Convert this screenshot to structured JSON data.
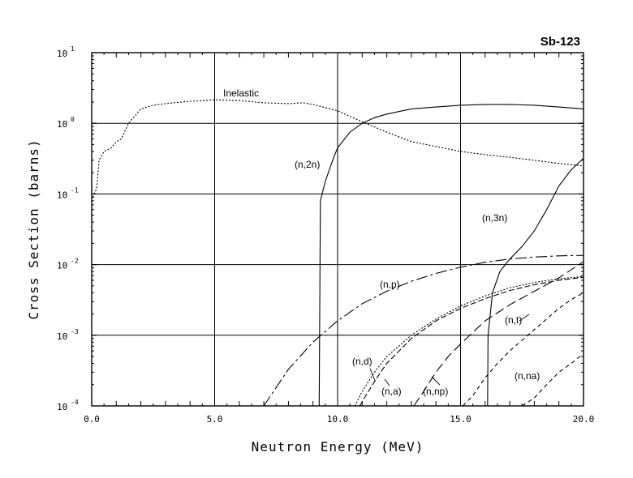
{
  "chart_data": {
    "type": "line",
    "title": "Sb-123",
    "xlabel": "Neutron Energy (MeV)",
    "ylabel": "Cross Section (barns)",
    "xlim": [
      0,
      20
    ],
    "ylim": [
      0.0001,
      10
    ],
    "yscale": "log",
    "grid": true,
    "x_ticks": [
      0,
      5,
      10,
      15,
      20
    ],
    "x_tick_labels": [
      "0.0",
      "5.0",
      "10.0",
      "15.0",
      "20.0"
    ],
    "y_ticks": [
      0.0001,
      0.001,
      0.01,
      0.1,
      1,
      10
    ],
    "y_tick_labels": [
      {
        "base": "10",
        "exp": "-4"
      },
      {
        "base": "10",
        "exp": "-3"
      },
      {
        "base": "10",
        "exp": "-2"
      },
      {
        "base": "10",
        "exp": "-1"
      },
      {
        "base": "10",
        "exp": "0"
      },
      {
        "base": "10",
        "exp": "1"
      }
    ],
    "series": [
      {
        "name": "Inelastic",
        "dash": "2,2",
        "x": [
          0.05,
          0.2,
          0.3,
          0.5,
          0.8,
          1.0,
          1.2,
          1.5,
          2.0,
          2.5,
          3.0,
          4.0,
          5.0,
          6.0,
          7.0,
          8.0,
          8.6,
          9.0,
          10.0,
          11.0,
          12.0,
          13.0,
          14.0,
          15.0,
          16.0,
          17.0,
          18.0,
          19.0,
          20.0
        ],
        "y": [
          0.09,
          0.12,
          0.3,
          0.4,
          0.45,
          0.55,
          0.6,
          1.0,
          1.6,
          1.8,
          1.9,
          2.05,
          2.15,
          2.1,
          1.95,
          1.9,
          1.95,
          1.85,
          1.5,
          1.05,
          0.75,
          0.55,
          0.47,
          0.4,
          0.36,
          0.33,
          0.3,
          0.27,
          0.25
        ]
      },
      {
        "name": "(n,2n)",
        "dash": "",
        "x": [
          9.25,
          9.3,
          9.5,
          9.8,
          10.0,
          10.5,
          11.0,
          11.5,
          12.0,
          13.0,
          14.0,
          15.0,
          16.0,
          17.0,
          18.0,
          19.0,
          20.0
        ],
        "y": [
          0.0001,
          0.08,
          0.15,
          0.3,
          0.45,
          0.75,
          1.0,
          1.2,
          1.35,
          1.6,
          1.7,
          1.8,
          1.85,
          1.85,
          1.8,
          1.7,
          1.6
        ]
      },
      {
        "name": "(n,3n)",
        "dash": "",
        "x": [
          16.1,
          16.12,
          16.3,
          16.6,
          17.0,
          17.5,
          18.0,
          18.5,
          19.0,
          19.5,
          20.0
        ],
        "y": [
          0.0001,
          0.001,
          0.004,
          0.008,
          0.012,
          0.018,
          0.03,
          0.06,
          0.13,
          0.22,
          0.32
        ]
      },
      {
        "name": "(n,p)",
        "dash": "14,4,3,4",
        "x": [
          7.0,
          8.0,
          9.0,
          10.0,
          11.0,
          12.0,
          13.0,
          14.0,
          15.0,
          16.0,
          17.0,
          18.0,
          19.0,
          20.0
        ],
        "y": [
          0.0001,
          0.00033,
          0.0008,
          0.0016,
          0.0028,
          0.0042,
          0.0058,
          0.0075,
          0.0092,
          0.0108,
          0.012,
          0.0128,
          0.0133,
          0.0135
        ]
      },
      {
        "name": "(n,d)",
        "dash": "2,2",
        "x": [
          10.7,
          11.0,
          11.5,
          12.0,
          13.0,
          14.0,
          15.0,
          16.0,
          17.0,
          18.0,
          19.0,
          20.0
        ],
        "y": [
          0.0001,
          0.00016,
          0.0003,
          0.0005,
          0.001,
          0.0017,
          0.0026,
          0.0036,
          0.0047,
          0.0056,
          0.0063,
          0.0068
        ]
      },
      {
        "name": "(n,a)",
        "dash": "7,3",
        "x": [
          10.9,
          11.2,
          11.6,
          12.0,
          13.0,
          14.0,
          15.0,
          16.0,
          17.0,
          18.0,
          19.0,
          20.0
        ],
        "y": [
          0.0001,
          0.00015,
          0.00025,
          0.0004,
          0.0009,
          0.0016,
          0.0024,
          0.0033,
          0.0043,
          0.0052,
          0.006,
          0.0066
        ]
      },
      {
        "name": "(n,np)",
        "dash": "12,5",
        "x": [
          13.1,
          13.5,
          14.0,
          14.5,
          15.0,
          15.5,
          16.0,
          17.0,
          18.0,
          19.0,
          20.0
        ],
        "y": [
          0.0001,
          0.00016,
          0.0003,
          0.0005,
          0.00075,
          0.0011,
          0.0016,
          0.0027,
          0.0042,
          0.0065,
          0.011
        ]
      },
      {
        "name": "(n,t)",
        "dash": "5,4",
        "x": [
          15.1,
          15.5,
          16.0,
          16.5,
          17.0,
          17.5,
          18.0,
          18.5,
          19.0,
          19.5,
          20.0
        ],
        "y": [
          0.0001,
          0.00014,
          0.00025,
          0.0004,
          0.0006,
          0.00085,
          0.0012,
          0.0017,
          0.0024,
          0.0032,
          0.004
        ]
      },
      {
        "name": "(n,na)",
        "dash": "5,4",
        "x": [
          17.5,
          18.0,
          18.5,
          19.0,
          19.5,
          20.0
        ],
        "y": [
          0.0001,
          0.00013,
          0.0002,
          0.0003,
          0.0004,
          0.00055
        ]
      }
    ],
    "annotations": [
      "Inelastic",
      "(n,2n)",
      "(n,3n)",
      "(n,p)",
      "(n,d)",
      "(n,a)",
      "(n,np)",
      "(n,t)",
      "(n,na)"
    ]
  }
}
